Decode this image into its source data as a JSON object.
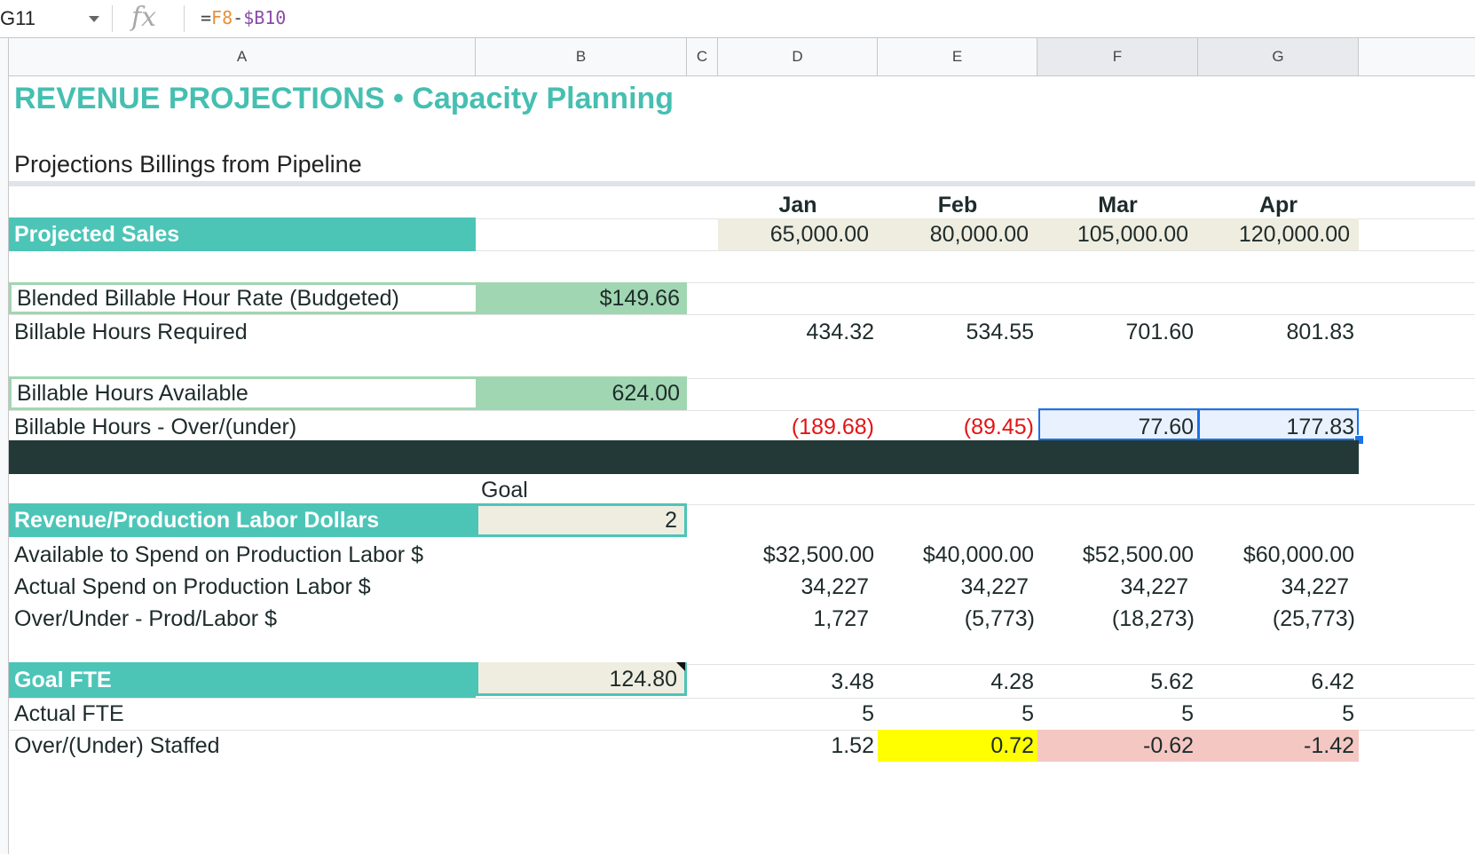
{
  "formula_bar": {
    "cell_ref": "G11",
    "fx": "fx",
    "formula_eq": "=",
    "formula_ref1": "F8",
    "formula_op": "-",
    "formula_ref2": "$B10"
  },
  "columns": [
    "A",
    "B",
    "C",
    "D",
    "E",
    "F",
    "G"
  ],
  "title": "REVENUE PROJECTIONS • Capacity Planning",
  "subtitle": "Projections Billings from Pipeline",
  "months": [
    "Jan",
    "Feb",
    "Mar",
    "Apr"
  ],
  "projected_sales": {
    "label": "Projected Sales",
    "values": [
      "65,000.00",
      "80,000.00",
      "105,000.00",
      "120,000.00"
    ]
  },
  "blended_rate": {
    "label": "Blended Billable Hour Rate (Budgeted)",
    "value": "$149.66"
  },
  "hours_required": {
    "label": "Billable Hours Required",
    "values": [
      "434.32",
      "534.55",
      "701.60",
      "801.83"
    ]
  },
  "hours_available": {
    "label": "Billable Hours Available",
    "value": "624.00"
  },
  "hours_over_under": {
    "label": "Billable Hours - Over/(under)",
    "values": [
      "(189.68)",
      "(89.45)",
      "77.60",
      "177.83"
    ]
  },
  "goal_header": "Goal",
  "revenue_labor": {
    "label": "Revenue/Production Labor Dollars",
    "goal": "2"
  },
  "available_spend": {
    "label": "Available to Spend on Production Labor $",
    "values": [
      "$32,500.00",
      "$40,000.00",
      "$52,500.00",
      "$60,000.00"
    ]
  },
  "actual_spend": {
    "label": "Actual Spend on Production Labor $",
    "values": [
      "34,227",
      "34,227",
      "34,227",
      "34,227"
    ]
  },
  "over_under_labor": {
    "label": "Over/Under - Prod/Labor $",
    "values": [
      "1,727",
      "(5,773)",
      "(18,273)",
      "(25,773)"
    ]
  },
  "goal_fte": {
    "label": "Goal FTE",
    "goal": "124.80",
    "values": [
      "3.48",
      "4.28",
      "5.62",
      "6.42"
    ]
  },
  "actual_fte": {
    "label": "Actual FTE",
    "values": [
      "5",
      "5",
      "5",
      "5"
    ]
  },
  "over_under_staffed": {
    "label": "Over/(Under) Staffed",
    "values": [
      "1.52",
      "0.72",
      "-0.62",
      "-1.42"
    ]
  },
  "colors": {
    "teal": "#4cc5b7",
    "green": "#a0d6b1",
    "cream": "#efede0",
    "dark": "#223938",
    "negative": "#e31414",
    "highlight_yellow": "#ffff00",
    "highlight_pink": "#f4c7c3",
    "selection": "#1a73e8"
  }
}
